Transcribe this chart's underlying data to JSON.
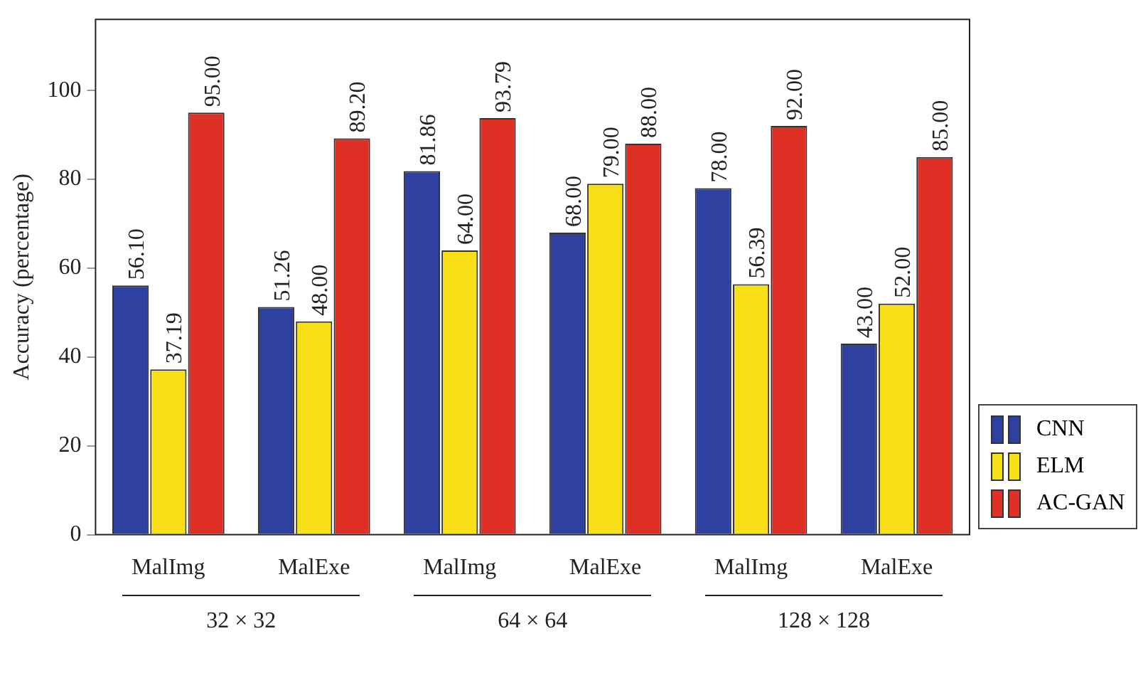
{
  "chart_data": {
    "type": "bar",
    "ylabel": "Accuracy (percentage)",
    "categories": [
      "MalImg",
      "MalExe",
      "MalImg",
      "MalExe",
      "MalImg",
      "MalExe"
    ],
    "series": [
      {
        "name": "CNN",
        "color": "#2e41a0",
        "values": [
          56.1,
          51.26,
          81.86,
          68.0,
          78.0,
          43.0
        ],
        "value_labels": [
          "56.10",
          "51.26",
          "81.86",
          "68.00",
          "78.00",
          "43.00"
        ]
      },
      {
        "name": "ELM",
        "color": "#f9df17",
        "values": [
          37.19,
          48.0,
          64.0,
          79.0,
          56.39,
          52.0
        ],
        "value_labels": [
          "37.19",
          "48.00",
          "64.00",
          "79.00",
          "56.39",
          "52.00"
        ]
      },
      {
        "name": "AC-GAN",
        "color": "#de3024",
        "values": [
          95.0,
          89.2,
          93.79,
          88.0,
          92.0,
          85.0
        ],
        "value_labels": [
          "95.00",
          "89.20",
          "93.79",
          "88.00",
          "92.00",
          "85.00"
        ]
      }
    ],
    "annotations": [
      "32 × 32",
      "64 × 64",
      "128 × 128"
    ],
    "ylim": [
      0,
      116
    ],
    "yticks": [
      0,
      20,
      40,
      60,
      80,
      100
    ],
    "grid": false,
    "legend": "right"
  }
}
